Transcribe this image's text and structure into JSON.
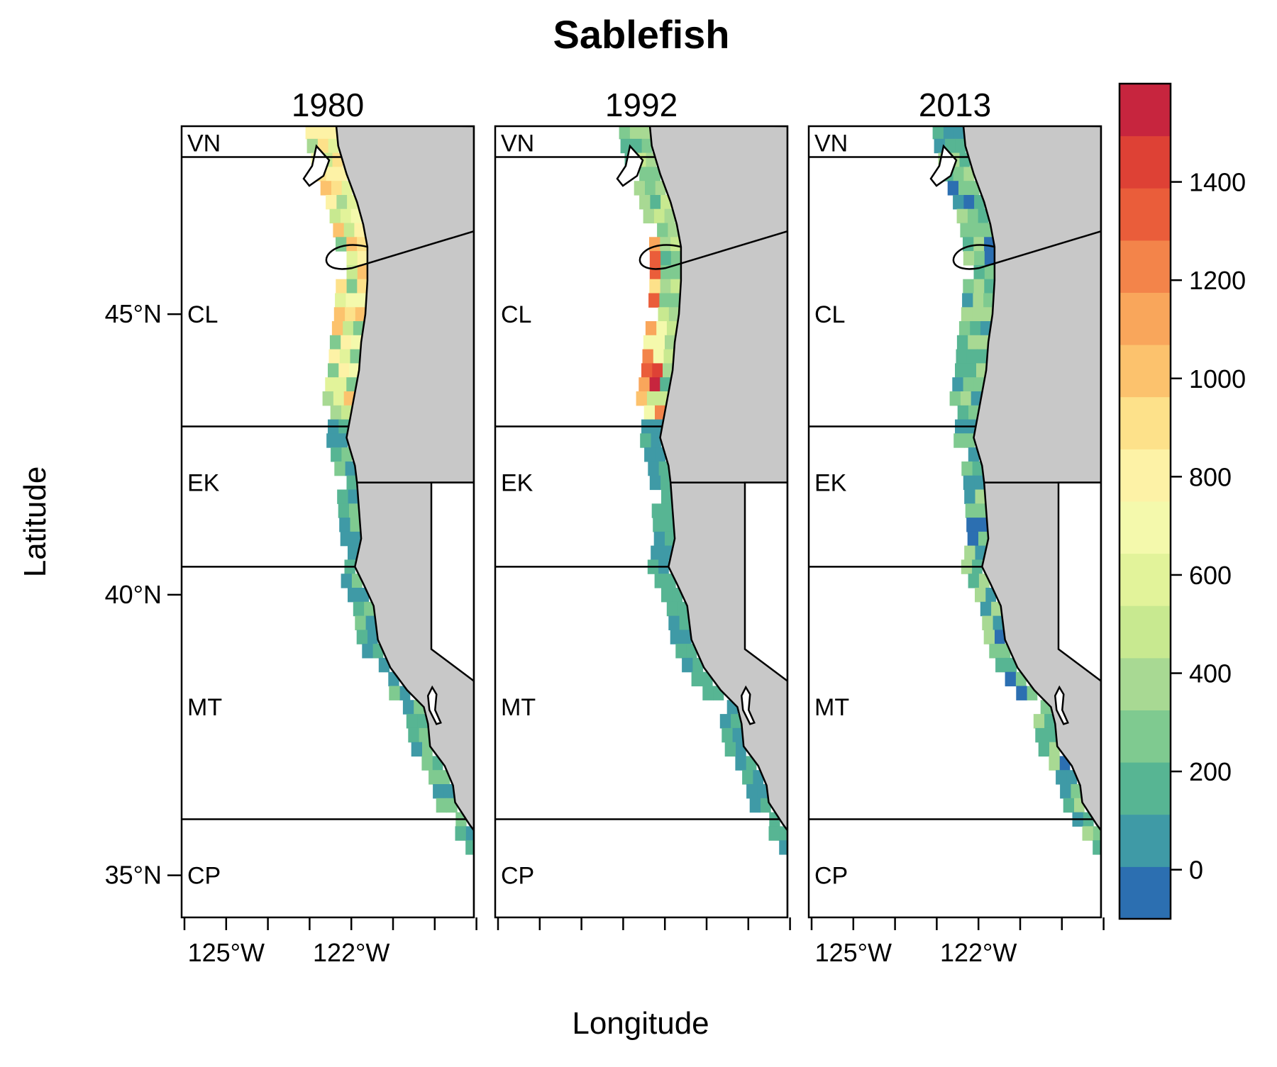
{
  "title": "Sablefish",
  "xlabel": "Longitude",
  "ylabel": "Latitude",
  "panels": [
    {
      "year": "1980",
      "show_x_labels": true
    },
    {
      "year": "1992",
      "show_x_labels": false
    },
    {
      "year": "2013",
      "show_x_labels": true
    }
  ],
  "x_tick_labels": [
    "125°W",
    "122°W"
  ],
  "y_tick_labels": [
    "45°N",
    "40°N",
    "35°N"
  ],
  "regions": [
    "VN",
    "CL",
    "EK",
    "MT",
    "CP"
  ],
  "colors": {
    "land": "#c8c8c8",
    "ocean": "#ffffff",
    "outline": "#000000"
  },
  "colorbar": {
    "range": [
      -100,
      1600
    ],
    "tick_labels": [
      "0",
      "200",
      "400",
      "600",
      "800",
      "1000",
      "1200",
      "1400"
    ],
    "tick_values": [
      0,
      200,
      400,
      600,
      800,
      1000,
      1200,
      1400
    ],
    "colors": [
      "#2c6fb1",
      "#3f9aa6",
      "#57b593",
      "#7fca90",
      "#a8d993",
      "#c8e990",
      "#e2f39a",
      "#f4f9ac",
      "#fdf2a6",
      "#fde18a",
      "#fcc26d",
      "#f9a65b",
      "#f3844a",
      "#ea5d3a",
      "#de4135",
      "#c7253e"
    ]
  },
  "chart_data": {
    "type": "heatmap",
    "title": "Sablefish",
    "xlabel": "Longitude",
    "ylabel": "Latitude",
    "facets": [
      "1980",
      "1992",
      "2013"
    ],
    "y_ticks": [
      "45°N",
      "40°N",
      "35°N"
    ],
    "x_ticks": [
      "125°W",
      "122°W"
    ],
    "colorbar_range": [
      -100,
      1600
    ],
    "note_series": [
      {
        "name": "1980",
        "max_value": 1100
      },
      {
        "name": "1992",
        "max_value": 1550
      },
      {
        "name": "2013",
        "max_value": 400
      }
    ]
  }
}
